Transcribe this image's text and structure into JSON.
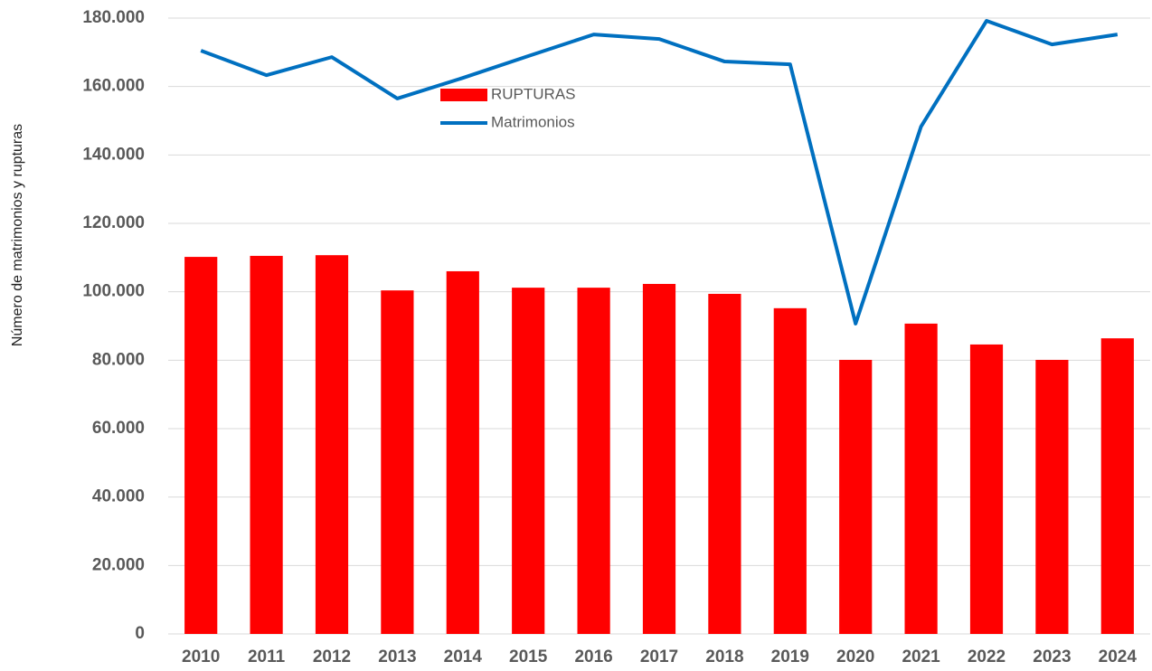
{
  "chart_data": {
    "type": "bar_line",
    "y_axis_label": "Número de matrimonios y rupturas",
    "categories": [
      "2010",
      "2011",
      "2012",
      "2013",
      "2014",
      "2015",
      "2016",
      "2017",
      "2018",
      "2019",
      "2020",
      "2021",
      "2022",
      "2023",
      "2024"
    ],
    "series": [
      {
        "name": "RUPTURAS",
        "type": "bar",
        "color": "#ff0000",
        "values": [
          110200,
          110500,
          110700,
          100400,
          106000,
          101200,
          101200,
          102300,
          99400,
          95200,
          80100,
          90700,
          84600,
          80100,
          86400
        ]
      },
      {
        "name": "Matrimonios",
        "type": "line",
        "color": "#0070c0",
        "values": [
          170500,
          163300,
          168600,
          156500,
          162500,
          168900,
          175200,
          173900,
          167300,
          166500,
          90700,
          148300,
          179200,
          172300,
          175200
        ]
      }
    ],
    "ylim": [
      0,
      180000
    ],
    "yticks": [
      0,
      {
        "value": 20000,
        "label": "20.000"
      },
      {
        "value": 40000,
        "label": "40.000"
      },
      {
        "value": 60000,
        "label": "60.000"
      },
      {
        "value": 80000,
        "label": "80.000"
      },
      {
        "value": 100000,
        "label": "100.000"
      },
      {
        "value": 120000,
        "label": "120.000"
      },
      {
        "value": 140000,
        "label": "140.000"
      },
      {
        "value": 160000,
        "label": "160.000"
      },
      {
        "value": 180000,
        "label": "180.000"
      }
    ],
    "grid": true,
    "legend": "top-center"
  }
}
